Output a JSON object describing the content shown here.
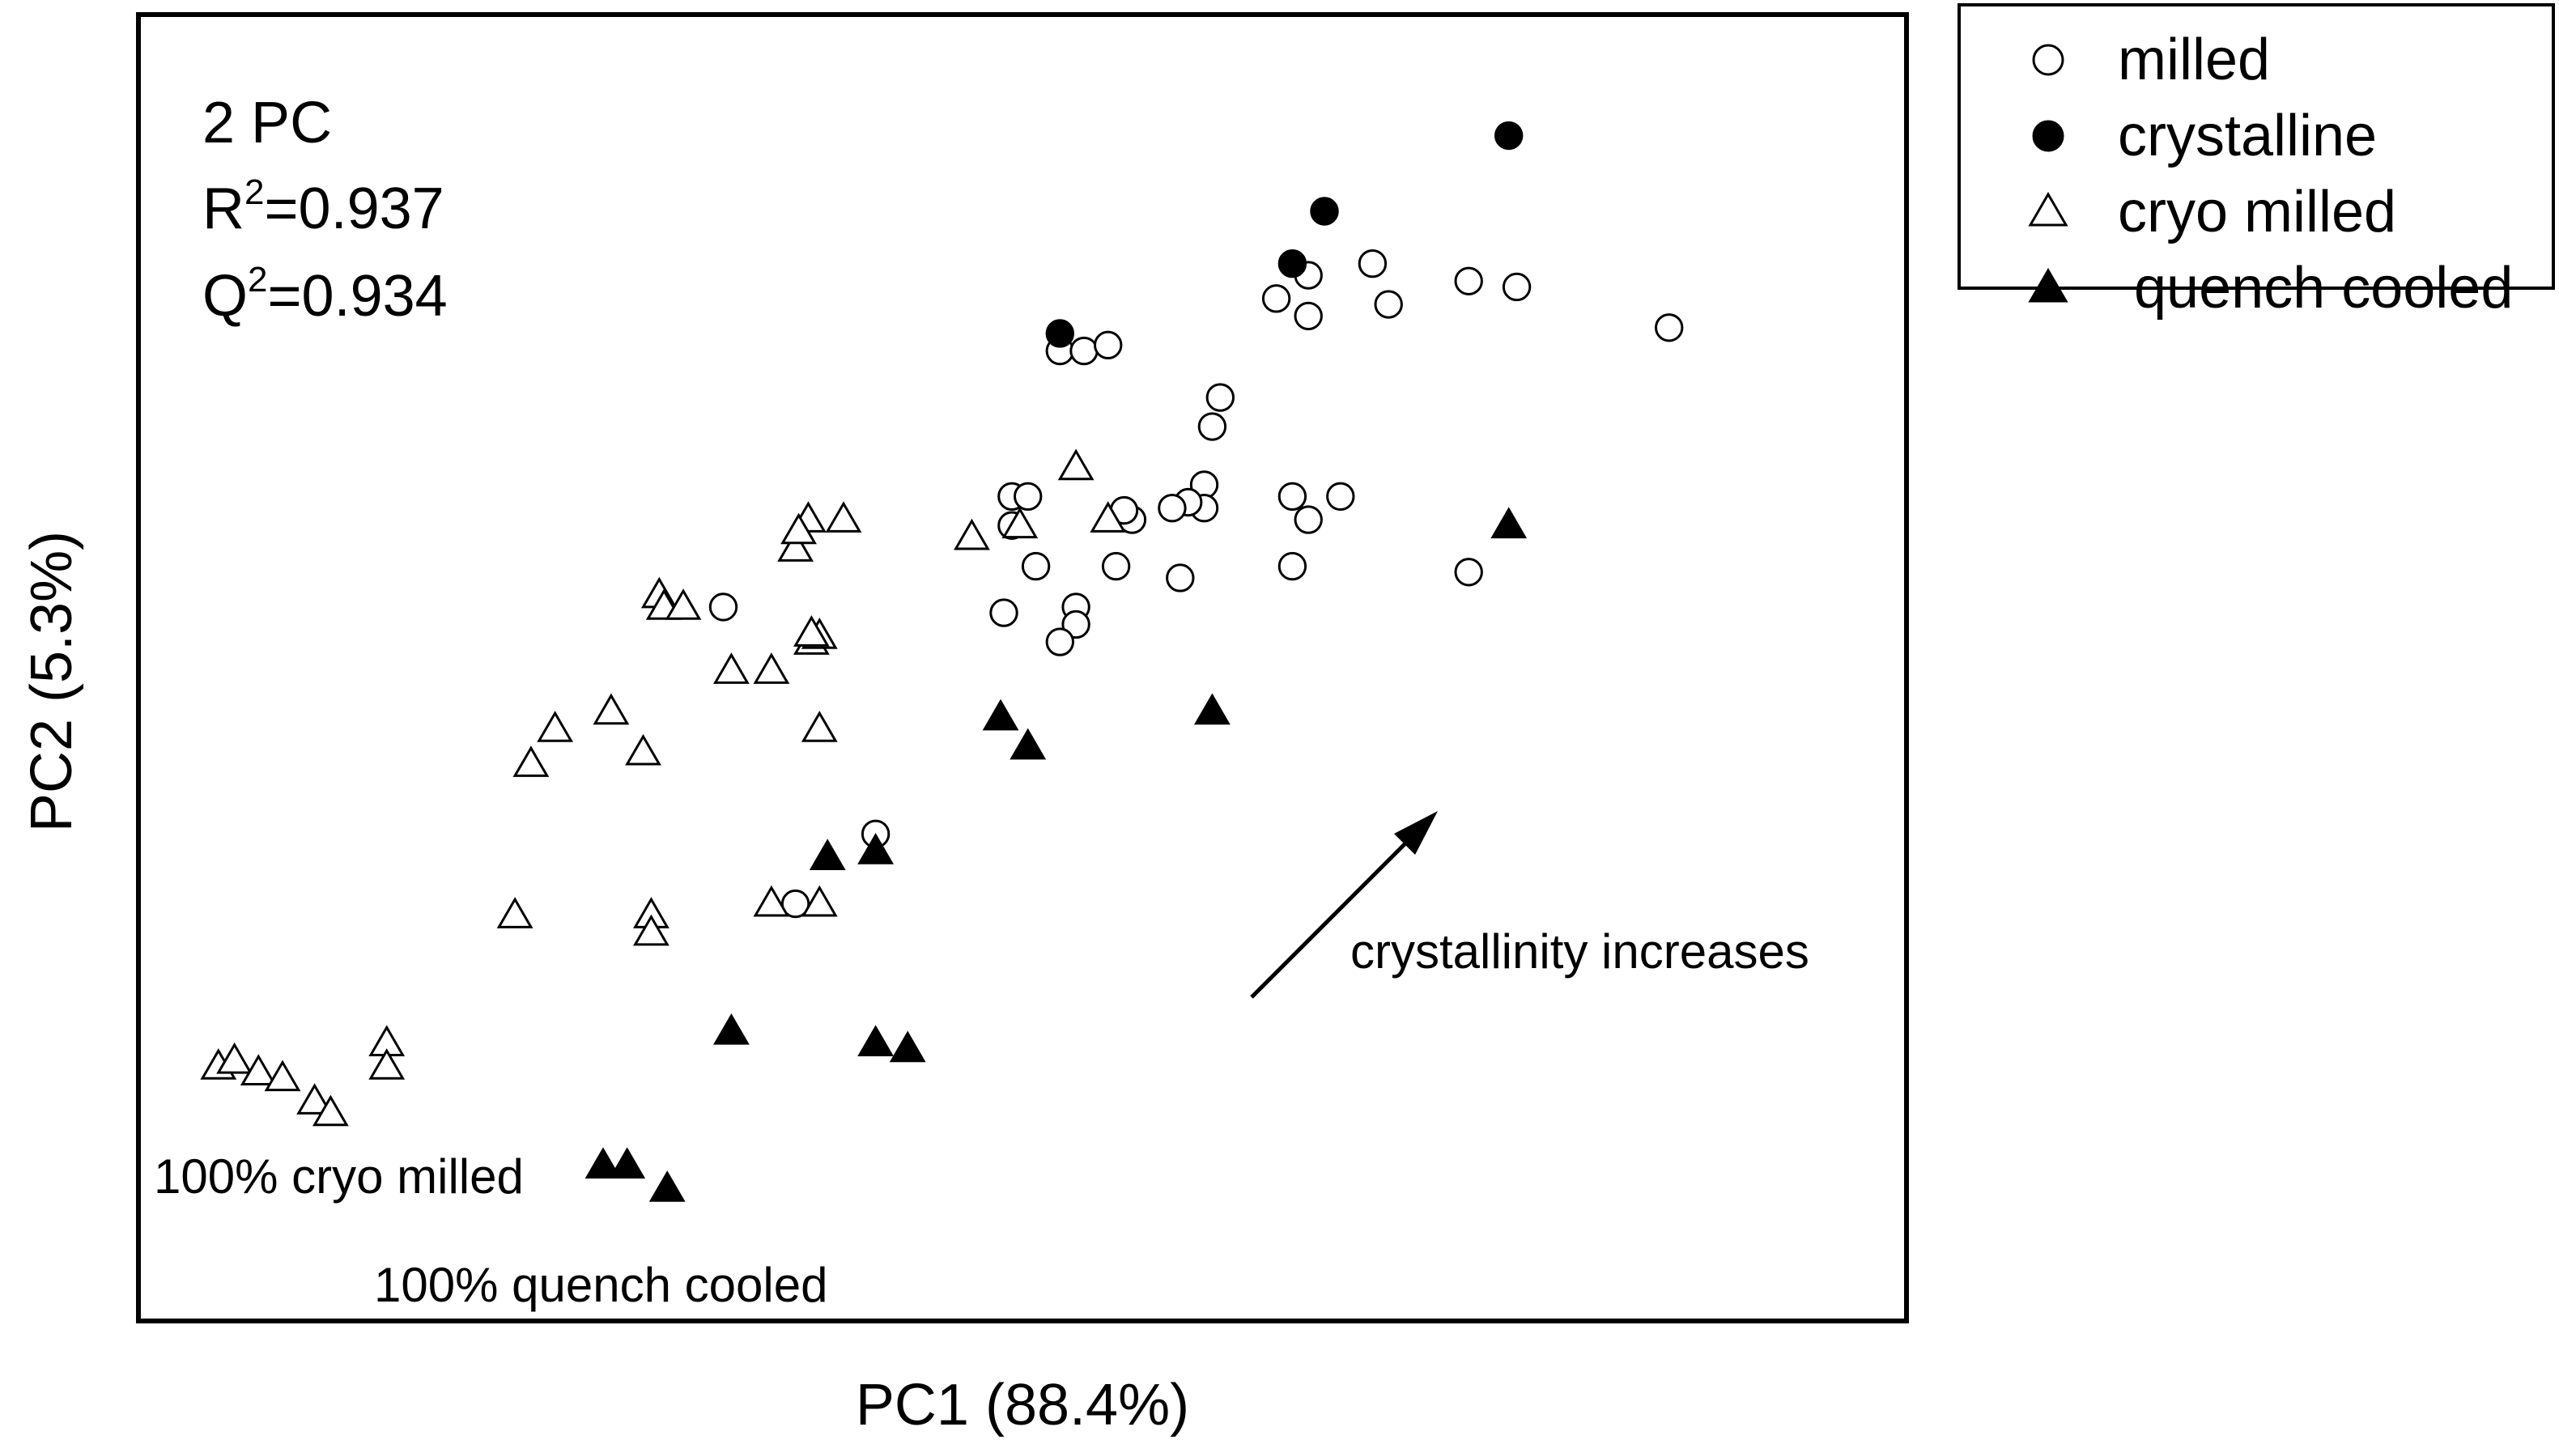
{
  "chart_data": {
    "type": "scatter",
    "title": "",
    "xlabel": "PC1 (88.4%)",
    "ylabel": "PC2 (5.3%)",
    "xlim": [
      0,
      100
    ],
    "ylim": [
      0,
      100
    ],
    "grid": false,
    "legend": {
      "position": "outside-top-right"
    },
    "stats": {
      "components": "2 PC",
      "r2": "0.937",
      "q2": "0.934"
    },
    "annotations": {
      "arrow_label": "crystallinity increases",
      "cryo_label": "100% cryo milled",
      "quench_label": "100% quench cooled"
    },
    "series": [
      {
        "name": "milled",
        "marker": "circle-open",
        "points": [
          [
            53.5,
            77.5
          ],
          [
            55,
            77.5
          ],
          [
            56.5,
            78
          ],
          [
            63.5,
            73.5
          ],
          [
            63,
            71
          ],
          [
            62.5,
            66
          ],
          [
            62.5,
            64
          ],
          [
            61.5,
            64.5
          ],
          [
            60.5,
            64
          ],
          [
            58,
            63
          ],
          [
            57.5,
            63.8
          ],
          [
            50.5,
            65
          ],
          [
            50.5,
            62.5
          ],
          [
            52,
            59
          ],
          [
            57,
            59
          ],
          [
            51.5,
            65
          ],
          [
            67,
            82
          ],
          [
            69,
            84
          ],
          [
            69,
            80.5
          ],
          [
            73,
            85
          ],
          [
            74,
            81.5
          ],
          [
            79,
            83.5
          ],
          [
            82,
            83
          ],
          [
            91.5,
            79.5
          ],
          [
            68,
            65
          ],
          [
            71,
            65
          ],
          [
            69,
            63
          ],
          [
            79,
            58.5
          ],
          [
            68,
            59
          ],
          [
            61,
            58
          ],
          [
            54.5,
            55.5
          ],
          [
            54.5,
            54
          ],
          [
            53.5,
            52.5
          ],
          [
            50,
            55
          ],
          [
            32.5,
            55.5
          ],
          [
            42,
            36
          ],
          [
            37,
            30
          ]
        ]
      },
      {
        "name": "crystalline",
        "marker": "circle-filled",
        "points": [
          [
            53.5,
            79
          ],
          [
            68,
            85
          ],
          [
            70,
            89.5
          ],
          [
            81.5,
            96
          ]
        ]
      },
      {
        "name": "cryo milled",
        "marker": "triangle-open",
        "points": [
          [
            28.5,
            56.5
          ],
          [
            28.8,
            55.5
          ],
          [
            30,
            55.5
          ],
          [
            38,
            52.5
          ],
          [
            38.5,
            53
          ],
          [
            38,
            53.2
          ],
          [
            33,
            50
          ],
          [
            35.5,
            50
          ],
          [
            20.5,
            42
          ],
          [
            22,
            45
          ],
          [
            25.5,
            46.5
          ],
          [
            38.5,
            45
          ],
          [
            27.5,
            43
          ],
          [
            19.5,
            29
          ],
          [
            28,
            29
          ],
          [
            28,
            27.5
          ],
          [
            35.5,
            30
          ],
          [
            38.5,
            30
          ],
          [
            37,
            60.5
          ],
          [
            37.8,
            63
          ],
          [
            37.2,
            62
          ],
          [
            40,
            63
          ],
          [
            48,
            61.5
          ],
          [
            51,
            62.5
          ],
          [
            54.5,
            67.5
          ],
          [
            56.5,
            63
          ],
          [
            11.5,
            18
          ],
          [
            11.5,
            16
          ],
          [
            1,
            16
          ],
          [
            2,
            16.5
          ],
          [
            3.5,
            15.5
          ],
          [
            5,
            15
          ],
          [
            7,
            13
          ],
          [
            8,
            12
          ]
        ]
      },
      {
        "name": "quench cooled",
        "marker": "triangle-filled",
        "points": [
          [
            49.8,
            46
          ],
          [
            51.5,
            43.5
          ],
          [
            63,
            46.5
          ],
          [
            81.5,
            62.5
          ],
          [
            39,
            34
          ],
          [
            42,
            34.5
          ],
          [
            33,
            19
          ],
          [
            42,
            18
          ],
          [
            44,
            17.5
          ],
          [
            25,
            7.5
          ],
          [
            26.5,
            7.5
          ],
          [
            29,
            5.5
          ]
        ]
      }
    ]
  }
}
